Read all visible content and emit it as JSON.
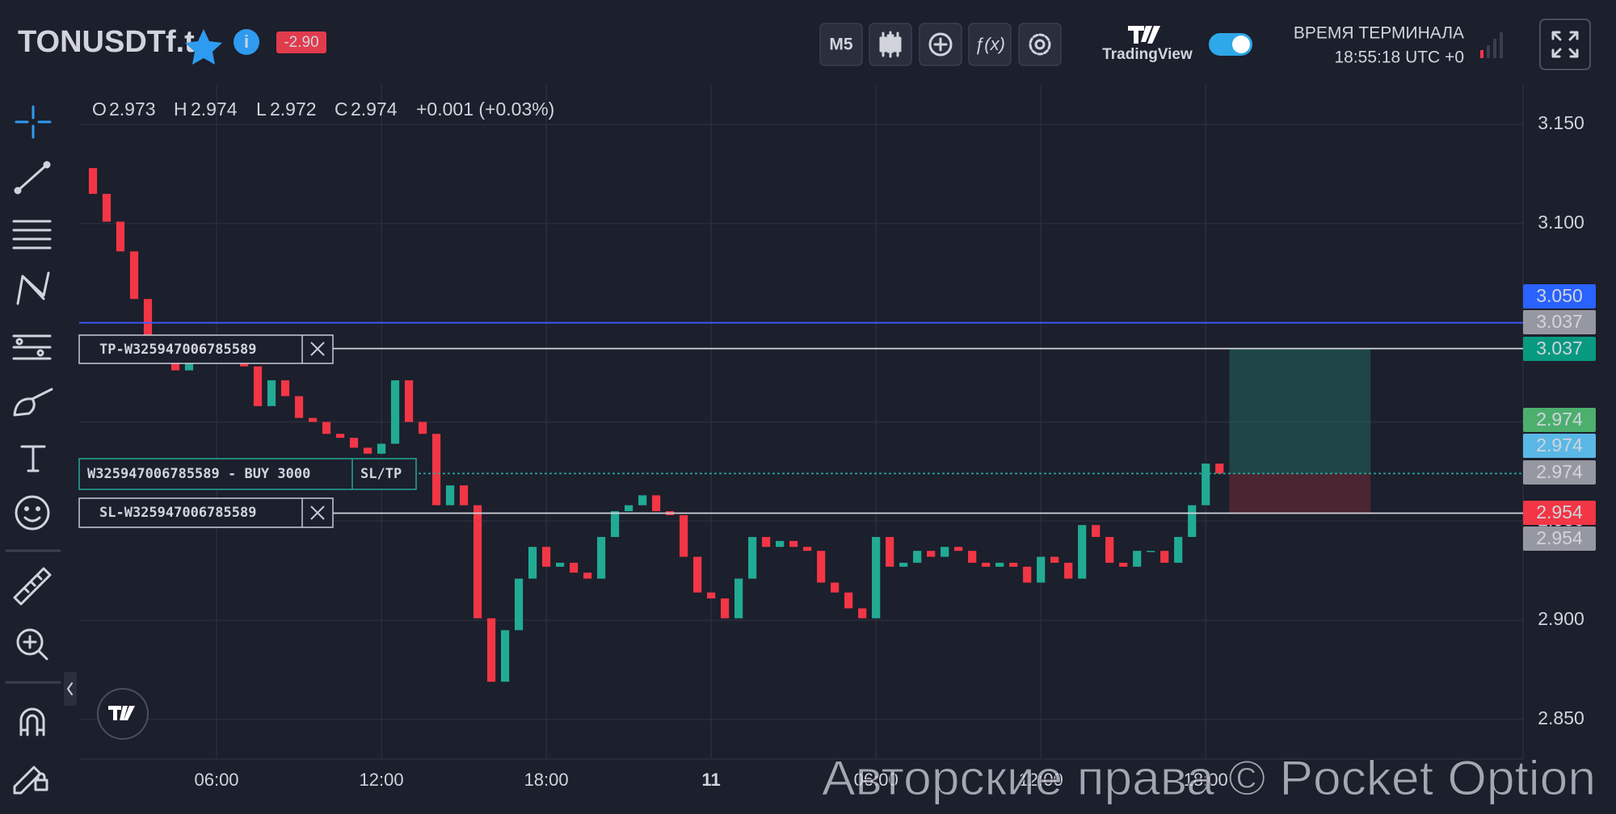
{
  "header": {
    "symbol": "TONUSDTf.t",
    "change": "-2.90",
    "timeframe": "M5",
    "brand": "TradingView",
    "terminal_time_label": "ВРЕМЯ ТЕРМИНАЛА",
    "terminal_time": "18:55:18 UTC +0"
  },
  "legend": {
    "o_label": "O",
    "o": "2.973",
    "h_label": "H",
    "h": "2.974",
    "l_label": "L",
    "l": "2.972",
    "c_label": "C",
    "c": "2.974",
    "change": "+0.001 (+0.03%)"
  },
  "orders": {
    "tp": "TP-W325947006785589",
    "position": "W325947006785589 - BUY 3000",
    "sltp": "SL/TP",
    "sl": "SL-W325947006785589"
  },
  "watermark": "Авторские права © Pocket Option",
  "chart_data": {
    "type": "candlestick",
    "x": [
      1,
      1.5,
      2,
      2.5,
      3,
      3.5,
      4,
      4.5,
      5,
      5.5,
      6,
      6.5,
      7,
      7.5,
      8,
      8.5,
      9,
      9.5,
      10,
      10.5,
      11,
      11.5,
      12,
      12.5,
      13,
      13.5,
      14,
      14.5,
      15,
      15.5,
      16,
      16.5,
      17,
      17.5,
      18,
      18.5,
      19,
      19.5,
      20,
      20.5,
      21,
      21.5,
      22,
      22.5,
      23,
      23.5,
      24,
      24.5,
      25,
      25.5,
      26,
      26.5,
      27,
      27.5,
      28,
      28.5,
      29,
      29.5,
      30,
      30.5,
      31,
      31.5,
      32,
      32.5,
      33,
      33.5,
      34,
      34.5,
      35,
      35.5,
      36,
      36.5,
      37,
      37.5,
      38,
      38.5,
      39,
      39.5,
      40,
      40.5,
      41,
      41.5,
      42,
      42.5
    ],
    "values": [
      3.128,
      3.115,
      3.101,
      3.086,
      3.062,
      3.036,
      3.041,
      3.026,
      3.039,
      3.036,
      3.036,
      3.034,
      3.028,
      3.008,
      3.021,
      3.013,
      3.002,
      3.0,
      2.994,
      2.992,
      2.987,
      2.984,
      2.989,
      3.021,
      3.0,
      2.994,
      2.958,
      2.968,
      2.958,
      2.901,
      2.869,
      2.895,
      2.921,
      2.937,
      2.927,
      2.929,
      2.924,
      2.921,
      2.942,
      2.955,
      2.958,
      2.963,
      2.955,
      2.953,
      2.932,
      2.914,
      2.911,
      2.901,
      2.921,
      2.942,
      2.937,
      2.94,
      2.937,
      2.935,
      2.919,
      2.914,
      2.906,
      2.901,
      2.942,
      2.927,
      2.929,
      2.935,
      2.932,
      2.937,
      2.935,
      2.929,
      2.927,
      2.929,
      2.927,
      2.919,
      2.932,
      2.929,
      2.921,
      2.948,
      2.942,
      2.929,
      2.927,
      2.935,
      2.935,
      2.929,
      2.942,
      2.958,
      2.979,
      2.974
    ],
    "up_color": "#22ab94",
    "down_color": "#f23645",
    "xlim": [
      1,
      53.55
    ],
    "xticks": [
      {
        "value": 6,
        "label": "06:00"
      },
      {
        "value": 12,
        "label": "12:00"
      },
      {
        "value": 18,
        "label": "18:00"
      },
      {
        "value": 24,
        "label": "11"
      },
      {
        "value": 30,
        "label": "06:00"
      },
      {
        "value": 36,
        "label": "12:00"
      },
      {
        "value": 42,
        "label": "18:00"
      }
    ],
    "ylim": [
      2.83,
      3.17
    ],
    "yticks": [
      {
        "value": 3.15,
        "label": "3.150"
      },
      {
        "value": 3.1,
        "label": "3.100"
      },
      {
        "value": 3.05,
        "label": "3.050"
      },
      {
        "value": 3,
        "label": "3.000"
      },
      {
        "value": 2.95,
        "label": "2.950"
      },
      {
        "value": 2.9,
        "label": "2.900"
      },
      {
        "value": 2.85,
        "label": "2.850"
      }
    ],
    "grid": true,
    "price_tags": [
      {
        "value": 3.05,
        "label": "3.050",
        "color": "#2962ff",
        "line_color": "#3d5afe"
      },
      {
        "value": 3.037,
        "label": "3.037",
        "color": "#9598a1",
        "line_color": "#d1d4dc"
      },
      {
        "value": 3.037,
        "label": "3.037",
        "color": "#089981"
      },
      {
        "value": 2.974,
        "label": "2.974",
        "color": "#4caf6e"
      },
      {
        "value": 2.974,
        "label": "2.974",
        "color": "#5ab8e6"
      },
      {
        "value": 2.974,
        "label": "2.974",
        "color": "#9598a1",
        "line_color": "#26a69a",
        "dashed": true
      },
      {
        "value": 2.954,
        "label": "2.954",
        "color": "#f23645"
      },
      {
        "value": 2.954,
        "label": "2.954",
        "color": "#9598a1",
        "line_color": "#d1d4dc"
      }
    ],
    "position": {
      "x_start": 42.86,
      "x_end": 48,
      "entry": 2.974,
      "take_profit": 3.037,
      "stop_loss": 2.954
    }
  }
}
